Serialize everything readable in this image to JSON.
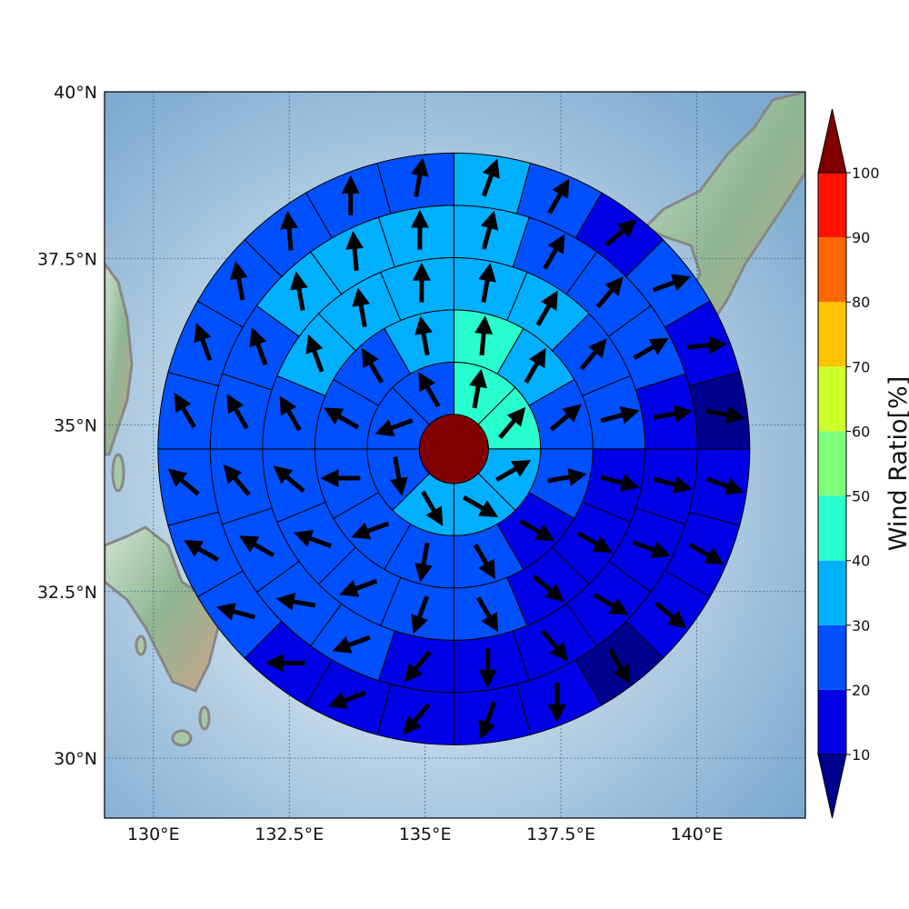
{
  "chart_data": {
    "type": "polar-sector-map",
    "lat_labels": [
      "40°N",
      "37.5°N",
      "35°N",
      "32.5°N",
      "30°N"
    ],
    "lon_labels": [
      "130°E",
      "132.5°E",
      "135°E",
      "137.5°E",
      "140°E"
    ],
    "lon_range": [
      129.1,
      142.0
    ],
    "lat_range": [
      29.1,
      40.0
    ],
    "center": {
      "lon": 135.53,
      "lat": 34.64
    },
    "colorbar": {
      "label": "Wind Ratio[%]",
      "ticks": [
        "10",
        "20",
        "30",
        "40",
        "50",
        "60",
        "70",
        "80",
        "90",
        "100"
      ],
      "bins": [
        10,
        20,
        30,
        40,
        50,
        60,
        70,
        80,
        90,
        100
      ],
      "colors": [
        "#0000e6",
        "#0050ff",
        "#00b0ff",
        "#29ffce",
        "#7dff7a",
        "#cdff29",
        "#ffc400",
        "#ff6800",
        "#ff1300"
      ],
      "under_color": "#00008f",
      "over_color": "#800000",
      "extend": "both"
    },
    "core": {
      "value": 100
    },
    "rings": [
      {
        "ring": 1,
        "values": [
          40,
          40,
          30,
          30,
          30,
          20,
          20,
          20
        ]
      },
      {
        "ring": 2,
        "values": [
          40,
          30,
          20,
          20,
          10,
          20,
          20,
          20,
          20,
          20,
          20,
          30
        ]
      },
      {
        "ring": 3,
        "values": [
          30,
          30,
          20,
          20,
          10,
          10,
          10,
          20,
          20,
          20,
          20,
          20,
          20,
          30,
          30,
          30
        ]
      },
      {
        "ring": 4,
        "values": [
          30,
          20,
          20,
          20,
          10,
          10,
          10,
          10,
          10,
          10,
          10,
          20,
          20,
          20,
          20,
          20,
          20,
          30,
          30,
          30
        ]
      },
      {
        "ring": 5,
        "values": [
          30,
          20,
          10,
          20,
          10,
          5,
          10,
          10,
          10,
          5,
          10,
          10,
          10,
          10,
          10,
          20,
          20,
          20,
          20,
          20,
          20,
          20,
          20,
          20
        ]
      }
    ],
    "arrows_deg": [
      [
        80,
        50,
        30,
        330,
        300,
        280,
        200,
        120
      ],
      [
        85,
        60,
        40,
        10,
        330,
        300,
        260,
        200,
        180,
        150,
        120,
        100
      ],
      [
        80,
        60,
        50,
        15,
        345,
        330,
        320,
        300,
        250,
        200,
        160,
        140,
        120,
        110,
        100,
        90
      ],
      [
        75,
        60,
        50,
        30,
        10,
        345,
        340,
        330,
        310,
        270,
        230,
        200,
        170,
        150,
        130,
        120,
        110,
        100,
        95,
        90
      ],
      [
        70,
        60,
        40,
        20,
        5,
        350,
        340,
        330,
        320,
        300,
        270,
        250,
        230,
        200,
        180,
        165,
        150,
        140,
        120,
        110,
        100,
        95,
        90,
        80
      ]
    ]
  }
}
